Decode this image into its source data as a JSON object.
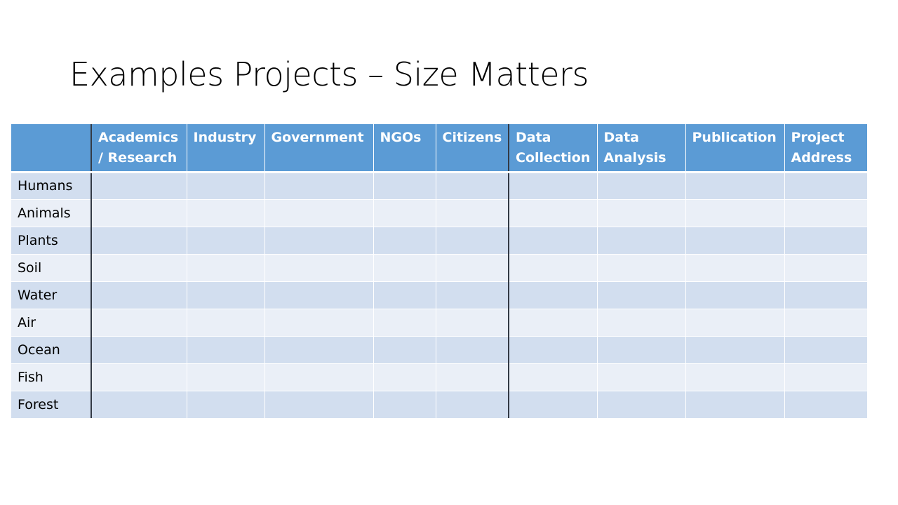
{
  "slide": {
    "title": "Examples Projects – Size Matters"
  },
  "table": {
    "corner": "",
    "columns": [
      "Academics / Research",
      "Industry",
      "Government",
      "NGOs",
      "Citizens",
      "Data Collection",
      "Data Analysis",
      "Publication",
      "Project Address"
    ],
    "rows": [
      "Humans",
      "Animals",
      "Plants",
      "Soil",
      "Water",
      "Air",
      "Ocean",
      "Fish",
      "Forest"
    ]
  },
  "colors": {
    "header_fill": "#5b9bd5",
    "row_fill_dark": "#d2deef",
    "row_fill_light": "#eaeff7",
    "separator": "#333a45"
  }
}
